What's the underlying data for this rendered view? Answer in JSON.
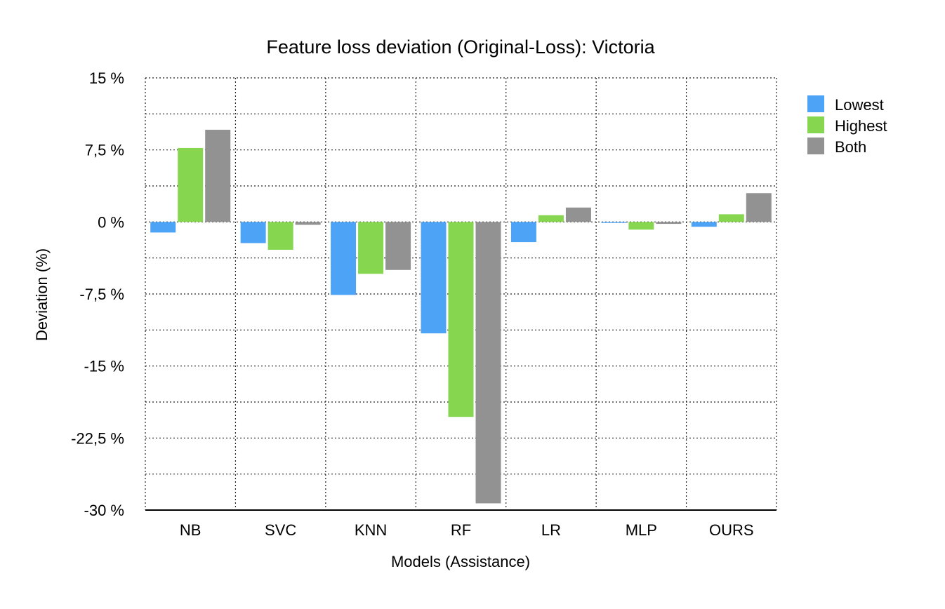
{
  "chart_data": {
    "type": "bar",
    "title": "Feature loss deviation (Original-Loss): Victoria",
    "xlabel": "Models (Assistance)",
    "ylabel": "Deviation (%)",
    "categories": [
      "NB",
      "SVC",
      "KNN",
      "RF",
      "LR",
      "MLP",
      "OURS"
    ],
    "series": [
      {
        "name": "Lowest",
        "color": "#4da3f5",
        "values": [
          -1.1,
          -2.2,
          -7.6,
          -11.6,
          -2.1,
          -0.1,
          -0.5
        ]
      },
      {
        "name": "Highest",
        "color": "#86d64f",
        "values": [
          7.7,
          -2.9,
          -5.4,
          -20.3,
          0.7,
          -0.8,
          0.8
        ]
      },
      {
        "name": "Both",
        "color": "#929292",
        "values": [
          9.6,
          -0.3,
          -5.0,
          -29.3,
          1.5,
          -0.2,
          3.0
        ]
      }
    ],
    "ylim": [
      -30,
      15
    ],
    "yticks": [
      15,
      7.5,
      0,
      -7.5,
      -15,
      -22.5,
      -30
    ],
    "ytick_labels": [
      "15 %",
      "7,5 %",
      "0 %",
      "-7,5 %",
      "-15 %",
      "-22,5 %",
      "-30 %"
    ],
    "minor_grid_step": 3.75,
    "grid": true,
    "legend_position": "right"
  }
}
